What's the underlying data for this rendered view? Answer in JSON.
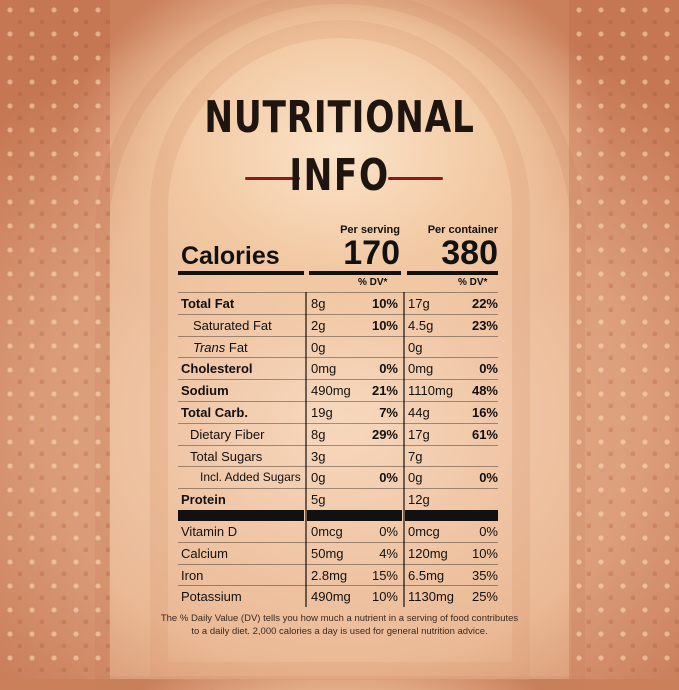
{
  "title_line1": "NUTRITIONAL",
  "title_line2": "INFO",
  "header": {
    "calories_label": "Calories",
    "per_serving": "Per serving",
    "per_container": "Per container",
    "calories_serving": "170",
    "calories_container": "380",
    "dv_label_1": "% DV*",
    "dv_label_2": "% DV*"
  },
  "rows": [
    {
      "name": "Total Fat",
      "amt1": "8g",
      "pct1": "10%",
      "amt2": "17g",
      "pct2": "22%"
    },
    {
      "name": "Saturated Fat",
      "amt1": "2g",
      "pct1": "10%",
      "amt2": "4.5g",
      "pct2": "23%"
    },
    {
      "name_italic": "Trans",
      "name_rest": " Fat",
      "amt1": "0g",
      "pct1": "",
      "amt2": "0g",
      "pct2": ""
    },
    {
      "name": "Cholesterol",
      "amt1": "0mg",
      "pct1": "0%",
      "amt2": "0mg",
      "pct2": "0%"
    },
    {
      "name": "Sodium",
      "amt1": "490mg",
      "pct1": "21%",
      "amt2": "1110mg",
      "pct2": "48%"
    },
    {
      "name": "Total Carb.",
      "amt1": "19g",
      "pct1": "7%",
      "amt2": "44g",
      "pct2": "16%"
    },
    {
      "name": "Dietary Fiber",
      "amt1": "8g",
      "pct1": "29%",
      "amt2": "17g",
      "pct2": "61%"
    },
    {
      "name": "Total Sugars",
      "amt1": "3g",
      "pct1": "",
      "amt2": "7g",
      "pct2": ""
    },
    {
      "name": "Incl. Added Sugars",
      "amt1": "0g",
      "pct1": "0%",
      "amt2": "0g",
      "pct2": "0%"
    },
    {
      "name": "Protein",
      "amt1": "5g",
      "pct1": "",
      "amt2": "12g",
      "pct2": ""
    }
  ],
  "vitamins": [
    {
      "name": "Vitamin D",
      "amt1": "0mcg",
      "pct1": "0%",
      "amt2": "0mcg",
      "pct2": "0%"
    },
    {
      "name": "Calcium",
      "amt1": "50mg",
      "pct1": "4%",
      "amt2": "120mg",
      "pct2": "10%"
    },
    {
      "name": "Iron",
      "amt1": "2.8mg",
      "pct1": "15%",
      "amt2": "6.5mg",
      "pct2": "35%"
    },
    {
      "name": "Potassium",
      "amt1": "490mg",
      "pct1": "10%",
      "amt2": "1130mg",
      "pct2": "25%"
    }
  ],
  "footnote_line1": "The % Daily Value (DV) tells you how much a nutrient in a serving of food contributes",
  "footnote_line2": "to a daily diet. 2,000 calories a day is used for general nutrition advice.",
  "colors": {
    "accent_rule": "#8b1a1a",
    "text": "#111111"
  }
}
